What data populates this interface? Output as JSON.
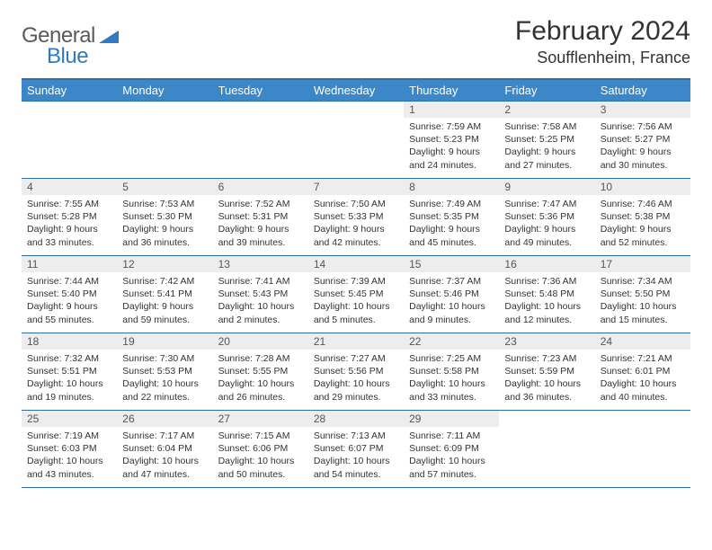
{
  "logo": {
    "text1": "General",
    "text2": "Blue"
  },
  "title": "February 2024",
  "location": "Soufflenheim, France",
  "colors": {
    "header_bg": "#3b87c8",
    "header_border": "#2f6fa8",
    "daynum_bg": "#ededed",
    "logo_gray": "#5a5a5a",
    "logo_blue": "#2f7ac0"
  },
  "weekdays": [
    "Sunday",
    "Monday",
    "Tuesday",
    "Wednesday",
    "Thursday",
    "Friday",
    "Saturday"
  ],
  "weeks": [
    [
      {
        "n": "",
        "lines": []
      },
      {
        "n": "",
        "lines": []
      },
      {
        "n": "",
        "lines": []
      },
      {
        "n": "",
        "lines": []
      },
      {
        "n": "1",
        "lines": [
          "Sunrise: 7:59 AM",
          "Sunset: 5:23 PM",
          "Daylight: 9 hours and 24 minutes."
        ]
      },
      {
        "n": "2",
        "lines": [
          "Sunrise: 7:58 AM",
          "Sunset: 5:25 PM",
          "Daylight: 9 hours and 27 minutes."
        ]
      },
      {
        "n": "3",
        "lines": [
          "Sunrise: 7:56 AM",
          "Sunset: 5:27 PM",
          "Daylight: 9 hours and 30 minutes."
        ]
      }
    ],
    [
      {
        "n": "4",
        "lines": [
          "Sunrise: 7:55 AM",
          "Sunset: 5:28 PM",
          "Daylight: 9 hours and 33 minutes."
        ]
      },
      {
        "n": "5",
        "lines": [
          "Sunrise: 7:53 AM",
          "Sunset: 5:30 PM",
          "Daylight: 9 hours and 36 minutes."
        ]
      },
      {
        "n": "6",
        "lines": [
          "Sunrise: 7:52 AM",
          "Sunset: 5:31 PM",
          "Daylight: 9 hours and 39 minutes."
        ]
      },
      {
        "n": "7",
        "lines": [
          "Sunrise: 7:50 AM",
          "Sunset: 5:33 PM",
          "Daylight: 9 hours and 42 minutes."
        ]
      },
      {
        "n": "8",
        "lines": [
          "Sunrise: 7:49 AM",
          "Sunset: 5:35 PM",
          "Daylight: 9 hours and 45 minutes."
        ]
      },
      {
        "n": "9",
        "lines": [
          "Sunrise: 7:47 AM",
          "Sunset: 5:36 PM",
          "Daylight: 9 hours and 49 minutes."
        ]
      },
      {
        "n": "10",
        "lines": [
          "Sunrise: 7:46 AM",
          "Sunset: 5:38 PM",
          "Daylight: 9 hours and 52 minutes."
        ]
      }
    ],
    [
      {
        "n": "11",
        "lines": [
          "Sunrise: 7:44 AM",
          "Sunset: 5:40 PM",
          "Daylight: 9 hours and 55 minutes."
        ]
      },
      {
        "n": "12",
        "lines": [
          "Sunrise: 7:42 AM",
          "Sunset: 5:41 PM",
          "Daylight: 9 hours and 59 minutes."
        ]
      },
      {
        "n": "13",
        "lines": [
          "Sunrise: 7:41 AM",
          "Sunset: 5:43 PM",
          "Daylight: 10 hours and 2 minutes."
        ]
      },
      {
        "n": "14",
        "lines": [
          "Sunrise: 7:39 AM",
          "Sunset: 5:45 PM",
          "Daylight: 10 hours and 5 minutes."
        ]
      },
      {
        "n": "15",
        "lines": [
          "Sunrise: 7:37 AM",
          "Sunset: 5:46 PM",
          "Daylight: 10 hours and 9 minutes."
        ]
      },
      {
        "n": "16",
        "lines": [
          "Sunrise: 7:36 AM",
          "Sunset: 5:48 PM",
          "Daylight: 10 hours and 12 minutes."
        ]
      },
      {
        "n": "17",
        "lines": [
          "Sunrise: 7:34 AM",
          "Sunset: 5:50 PM",
          "Daylight: 10 hours and 15 minutes."
        ]
      }
    ],
    [
      {
        "n": "18",
        "lines": [
          "Sunrise: 7:32 AM",
          "Sunset: 5:51 PM",
          "Daylight: 10 hours and 19 minutes."
        ]
      },
      {
        "n": "19",
        "lines": [
          "Sunrise: 7:30 AM",
          "Sunset: 5:53 PM",
          "Daylight: 10 hours and 22 minutes."
        ]
      },
      {
        "n": "20",
        "lines": [
          "Sunrise: 7:28 AM",
          "Sunset: 5:55 PM",
          "Daylight: 10 hours and 26 minutes."
        ]
      },
      {
        "n": "21",
        "lines": [
          "Sunrise: 7:27 AM",
          "Sunset: 5:56 PM",
          "Daylight: 10 hours and 29 minutes."
        ]
      },
      {
        "n": "22",
        "lines": [
          "Sunrise: 7:25 AM",
          "Sunset: 5:58 PM",
          "Daylight: 10 hours and 33 minutes."
        ]
      },
      {
        "n": "23",
        "lines": [
          "Sunrise: 7:23 AM",
          "Sunset: 5:59 PM",
          "Daylight: 10 hours and 36 minutes."
        ]
      },
      {
        "n": "24",
        "lines": [
          "Sunrise: 7:21 AM",
          "Sunset: 6:01 PM",
          "Daylight: 10 hours and 40 minutes."
        ]
      }
    ],
    [
      {
        "n": "25",
        "lines": [
          "Sunrise: 7:19 AM",
          "Sunset: 6:03 PM",
          "Daylight: 10 hours and 43 minutes."
        ]
      },
      {
        "n": "26",
        "lines": [
          "Sunrise: 7:17 AM",
          "Sunset: 6:04 PM",
          "Daylight: 10 hours and 47 minutes."
        ]
      },
      {
        "n": "27",
        "lines": [
          "Sunrise: 7:15 AM",
          "Sunset: 6:06 PM",
          "Daylight: 10 hours and 50 minutes."
        ]
      },
      {
        "n": "28",
        "lines": [
          "Sunrise: 7:13 AM",
          "Sunset: 6:07 PM",
          "Daylight: 10 hours and 54 minutes."
        ]
      },
      {
        "n": "29",
        "lines": [
          "Sunrise: 7:11 AM",
          "Sunset: 6:09 PM",
          "Daylight: 10 hours and 57 minutes."
        ]
      },
      {
        "n": "",
        "lines": []
      },
      {
        "n": "",
        "lines": []
      }
    ]
  ]
}
